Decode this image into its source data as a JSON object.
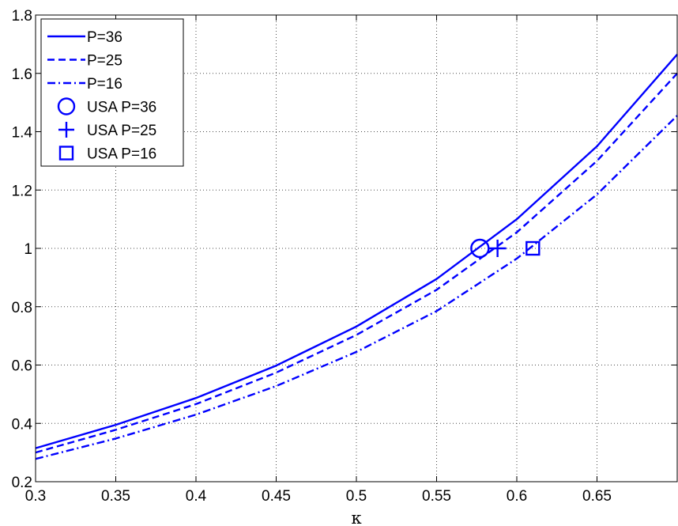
{
  "chart_data": {
    "type": "line",
    "title": "",
    "xlabel": "κ",
    "ylabel": "",
    "xlim": [
      0.3,
      0.7
    ],
    "ylim": [
      0.2,
      1.8
    ],
    "xticks": [
      0.3,
      0.35,
      0.4,
      0.45,
      0.5,
      0.55,
      0.6,
      0.65
    ],
    "xtick_labels": [
      "0.3",
      "0.35",
      "0.4",
      "0.45",
      "0.5",
      "0.55",
      "0.6",
      "0.65"
    ],
    "yticks": [
      0.2,
      0.4,
      0.6,
      0.8,
      1.0,
      1.2,
      1.4,
      1.6,
      1.8
    ],
    "ytick_labels": [
      "0.2",
      "0.4",
      "0.6",
      "0.8",
      "1",
      "1.2",
      "1.4",
      "1.6",
      "1.8"
    ],
    "grid": true,
    "legend_position": "top-left",
    "line_color": "#0000ff",
    "series": [
      {
        "name": "P=36",
        "style": "solid",
        "x": [
          0.3,
          0.35,
          0.4,
          0.45,
          0.5,
          0.55,
          0.6,
          0.65,
          0.7
        ],
        "y": [
          0.315,
          0.395,
          0.487,
          0.598,
          0.732,
          0.895,
          1.1,
          1.35,
          1.665
        ]
      },
      {
        "name": "P=25",
        "style": "dashed",
        "x": [
          0.3,
          0.35,
          0.4,
          0.45,
          0.5,
          0.55,
          0.6,
          0.65,
          0.7
        ],
        "y": [
          0.3,
          0.378,
          0.466,
          0.574,
          0.703,
          0.858,
          1.055,
          1.3,
          1.6
        ]
      },
      {
        "name": "P=16",
        "style": "dashdot",
        "x": [
          0.3,
          0.35,
          0.4,
          0.45,
          0.5,
          0.55,
          0.6,
          0.65,
          0.7
        ],
        "y": [
          0.278,
          0.348,
          0.43,
          0.528,
          0.645,
          0.785,
          0.965,
          1.185,
          1.455
        ]
      }
    ],
    "markers": [
      {
        "name": "USA P=36",
        "marker": "circle",
        "x": 0.577,
        "y": 1.0
      },
      {
        "name": "USA P=25",
        "marker": "plus",
        "x": 0.588,
        "y": 1.0
      },
      {
        "name": "USA P=16",
        "marker": "square",
        "x": 0.61,
        "y": 1.0
      }
    ]
  }
}
